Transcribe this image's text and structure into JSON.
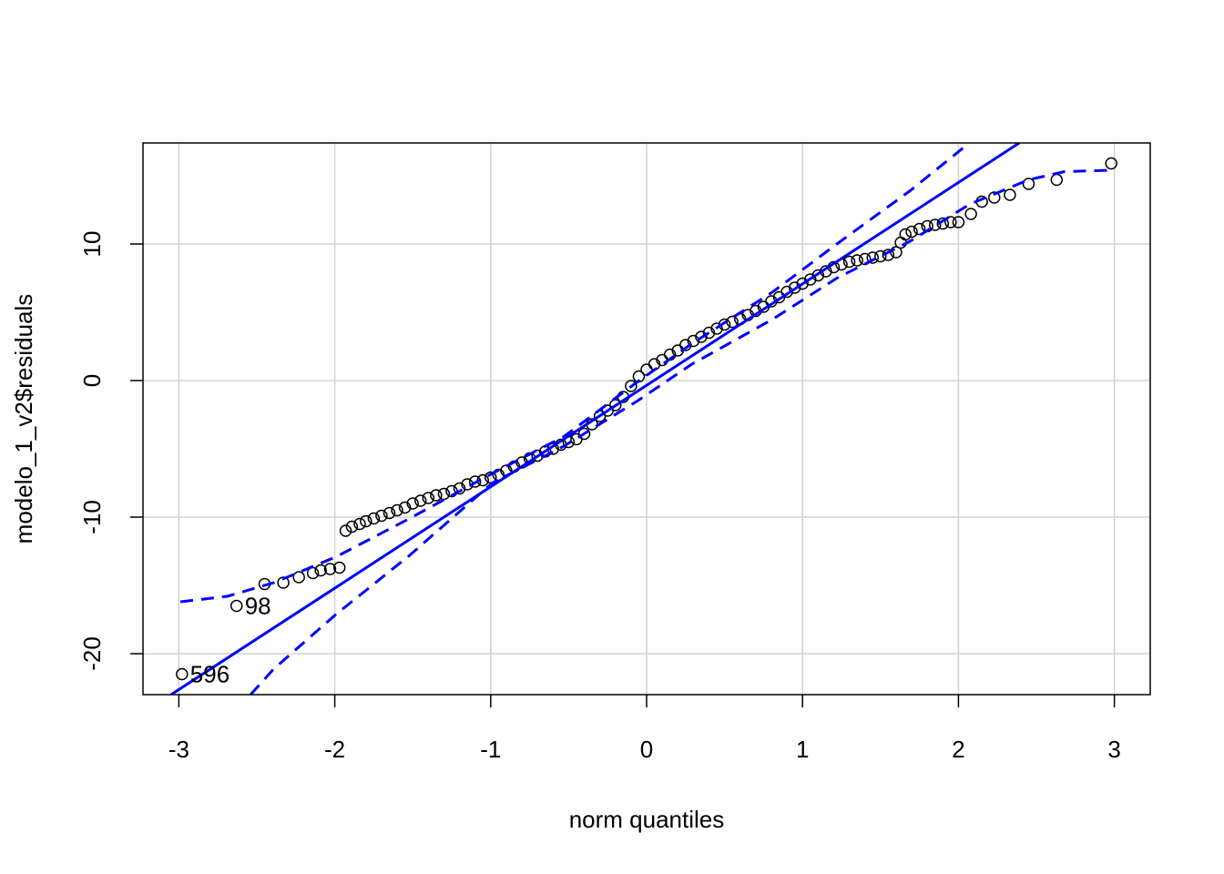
{
  "chart_data": {
    "type": "scatter",
    "xlabel": "norm quantiles",
    "ylabel": "modelo_1_v2$residuals",
    "xlim": [
      -3.23,
      3.23
    ],
    "ylim": [
      -23,
      17.4
    ],
    "xticks": [
      -3,
      -2,
      -1,
      0,
      1,
      2,
      3
    ],
    "yticks": [
      -20,
      -10,
      0,
      10
    ],
    "grid": true,
    "grid_color": "#d3d3d3",
    "series": [
      {
        "kind": "points",
        "color": "#000000",
        "x": [
          -2.98,
          -2.63,
          -2.45,
          -2.33,
          -2.23,
          -2.14,
          -2.09,
          -2.03,
          -1.97,
          -1.93,
          -1.89,
          -1.84,
          -1.8,
          -1.75,
          -1.7,
          -1.65,
          -1.6,
          -1.55,
          -1.5,
          -1.45,
          -1.4,
          -1.35,
          -1.3,
          -1.25,
          -1.2,
          -1.15,
          -1.1,
          -1.05,
          -1.0,
          -0.95,
          -0.9,
          -0.85,
          -0.8,
          -0.75,
          -0.7,
          -0.65,
          -0.6,
          -0.55,
          -0.5,
          -0.45,
          -0.4,
          -0.35,
          -0.3,
          -0.25,
          -0.2,
          -0.15,
          -0.1,
          -0.05,
          0,
          0.05,
          0.1,
          0.15,
          0.2,
          0.25,
          0.3,
          0.35,
          0.4,
          0.45,
          0.5,
          0.55,
          0.6,
          0.65,
          0.7,
          0.75,
          0.8,
          0.85,
          0.9,
          0.95,
          1.0,
          1.05,
          1.1,
          1.15,
          1.2,
          1.25,
          1.3,
          1.35,
          1.4,
          1.45,
          1.5,
          1.55,
          1.6,
          1.63,
          1.66,
          1.7,
          1.75,
          1.8,
          1.85,
          1.9,
          1.95,
          2.0,
          2.08,
          2.15,
          2.23,
          2.33,
          2.45,
          2.63,
          2.98
        ],
        "values": [
          -21.5,
          -16.5,
          -14.9,
          -14.8,
          -14.4,
          -14.1,
          -13.9,
          -13.8,
          -13.7,
          -11,
          -10.7,
          -10.5,
          -10.3,
          -10.1,
          -9.9,
          -9.7,
          -9.5,
          -9.3,
          -9.0,
          -8.8,
          -8.6,
          -8.4,
          -8.3,
          -8.1,
          -7.9,
          -7.6,
          -7.4,
          -7.3,
          -7.1,
          -6.9,
          -6.6,
          -6.3,
          -6.0,
          -5.7,
          -5.5,
          -5.2,
          -5.0,
          -4.7,
          -4.5,
          -4.3,
          -3.9,
          -3.2,
          -2.6,
          -2.2,
          -1.8,
          -1.2,
          -0.4,
          0.3,
          0.8,
          1.2,
          1.5,
          1.9,
          2.2,
          2.6,
          2.9,
          3.2,
          3.5,
          3.8,
          4.1,
          4.3,
          4.5,
          4.8,
          5.1,
          5.4,
          5.8,
          6.1,
          6.5,
          6.8,
          7.1,
          7.4,
          7.7,
          8.0,
          8.3,
          8.5,
          8.7,
          8.8,
          8.9,
          9.0,
          9.1,
          9.2,
          9.4,
          10.1,
          10.7,
          10.9,
          11.1,
          11.3,
          11.4,
          11.5,
          11.6,
          11.6,
          12.2,
          13.1,
          13.4,
          13.6,
          14.4,
          14.7,
          15.9
        ]
      },
      {
        "kind": "line",
        "color": "#0000ff",
        "dash": false,
        "x": [
          -3.05,
          2.39
        ],
        "values": [
          -23,
          17.4
        ]
      },
      {
        "kind": "line",
        "color": "#0000ff",
        "dash": true,
        "x": [
          -2.99,
          -2.69,
          -2.39,
          -1.99,
          -1.52,
          -0.99,
          -0.53,
          -0.06,
          0.29,
          0.81,
          1.22,
          1.69,
          2.07
        ],
        "values": [
          -16.2,
          -15.8,
          -14.8,
          -12.9,
          -10.1,
          -6.8,
          -4.1,
          -0.1,
          2.7,
          6.5,
          10,
          13.9,
          17.4
        ]
      },
      {
        "kind": "line",
        "color": "#0000ff",
        "dash": true,
        "x": [
          -2.54,
          -2.39,
          -1.99,
          -1.52,
          -0.99,
          -0.53,
          -0.06,
          0.29,
          0.81,
          1.22,
          1.69,
          2.07,
          2.45,
          2.68,
          2.98
        ],
        "values": [
          -23,
          -21.1,
          -17.1,
          -12.8,
          -7.5,
          -4.8,
          -1.5,
          1.2,
          4.5,
          7.5,
          10.2,
          12.9,
          14.7,
          15.3,
          15.4
        ]
      }
    ],
    "annotations": [
      {
        "text": "596",
        "x": -2.98,
        "y": -21.5
      },
      {
        "text": "98",
        "x": -2.63,
        "y": -16.5
      }
    ]
  }
}
